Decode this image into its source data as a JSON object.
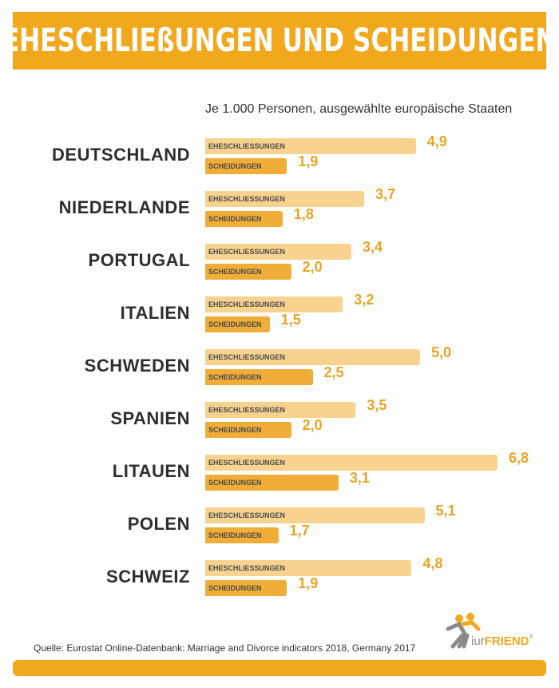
{
  "title": "EHESCHLIEßUNGEN UND SCHEIDUNGEN",
  "subtitle": "Je 1.000 Personen, ausgewählte europäische Staaten",
  "source": "Quelle: Eurostat Online-Datenbank: Marriage and Divorce indicators 2018, Germany 2017",
  "logo": {
    "prefix": "iur",
    "name": "FRIEND",
    "reg": "®"
  },
  "colors": {
    "accent": "#f2a81d",
    "marriage_bar": "#f8d390",
    "divorce_bar": "#f0ad37",
    "value_text": "#e8a524"
  },
  "chart_data": {
    "type": "bar",
    "orientation": "horizontal",
    "title": "EHESCHLIEßUNGEN UND SCHEIDUNGEN",
    "subtitle": "Je 1.000 Personen, ausgewählte europäische Staaten",
    "categories": [
      "DEUTSCHLAND",
      "NIEDERLANDE",
      "PORTUGAL",
      "ITALIEN",
      "SCHWEDEN",
      "SPANIEN",
      "LITAUEN",
      "POLEN",
      "SCHWEIZ"
    ],
    "series": [
      {
        "name": "EHESCHLIESSUNGEN",
        "values": [
          4.9,
          3.7,
          3.4,
          3.2,
          5.0,
          3.5,
          6.8,
          5.1,
          4.8
        ],
        "labels": [
          "4,9",
          "3,7",
          "3,4",
          "3,2",
          "5,0",
          "3,5",
          "6,8",
          "5,1",
          "4,8"
        ]
      },
      {
        "name": "SCHEIDUNGEN",
        "values": [
          1.9,
          1.8,
          2.0,
          1.5,
          2.5,
          2.0,
          3.1,
          1.7,
          1.9
        ],
        "labels": [
          "1,9",
          "1,8",
          "2,0",
          "1,5",
          "2,5",
          "2,0",
          "3,1",
          "1,7",
          "1,9"
        ]
      }
    ],
    "xlim": [
      0,
      6.8
    ],
    "grid": false,
    "legend": "inline"
  }
}
